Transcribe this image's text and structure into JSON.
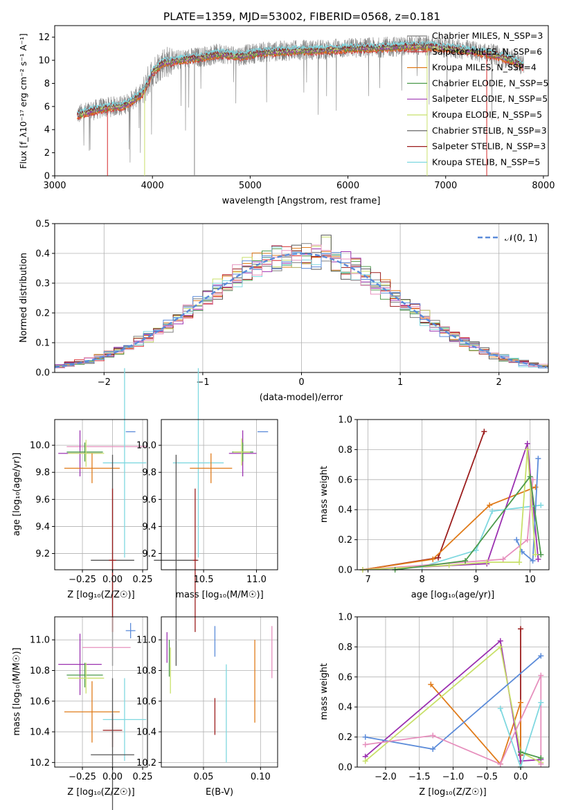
{
  "title": "PLATE=1359, MJD=53002, FIBERID=0568, z=0.181",
  "colors": {
    "chabrier_miles": "#7f7f7f",
    "salpeter_miles": "#d62728",
    "kroupa_miles": "#e07b1a",
    "chabrier_elodie": "#4c9a4c",
    "salpeter_elodie": "#9b30b0",
    "kroupa_elodie": "#c8e06a",
    "chabrier_stelib": "#555555",
    "salpeter_stelib": "#9b1c1c",
    "kroupa_stelib": "#7fd8e0",
    "blue": "#5b8bd9",
    "pink": "#e68fbd",
    "normal": "#5b8bd9"
  },
  "chart_data": [
    {
      "id": "spectrum",
      "type": "line",
      "xlabel": "wavelength [Angstrom, rest frame]",
      "ylabel": "Flux [f_λ10⁻¹⁷ erg cm⁻² s⁻¹ A⁻¹]",
      "xlim": [
        3000,
        8050
      ],
      "ylim": [
        0,
        13
      ],
      "xticks": [
        "3000",
        "4000",
        "5000",
        "6000",
        "7000",
        "8000"
      ],
      "yticks": [
        "0",
        "2",
        "4",
        "6",
        "8",
        "10",
        "12"
      ],
      "legend_position": "top-right",
      "grid": false,
      "series": [
        {
          "name": "Chabrier MILES, N_SSP=3",
          "key": "chabrier_miles"
        },
        {
          "name": "Salpeter MILES, N_SSP=6",
          "key": "salpeter_miles"
        },
        {
          "name": "Kroupa MILES, N_SSP=4",
          "key": "kroupa_miles"
        },
        {
          "name": "Chabrier ELODIE, N_SSP=5",
          "key": "chabrier_elodie"
        },
        {
          "name": "Salpeter ELODIE, N_SSP=5",
          "key": "salpeter_elodie"
        },
        {
          "name": "Kroupa ELODIE, N_SSP=5",
          "key": "kroupa_elodie"
        },
        {
          "name": "Chabrier STELIB, N_SSP=3",
          "key": "chabrier_stelib"
        },
        {
          "name": "Salpeter STELIB, N_SSP=3",
          "key": "salpeter_stelib"
        },
        {
          "name": "Kroupa STELIB, N_SSP=5",
          "key": "kroupa_stelib"
        }
      ],
      "continuum": {
        "x": [
          3230,
          3400,
          3500,
          3600,
          3700,
          3800,
          3900,
          4000,
          4100,
          4300,
          4500,
          4700,
          4900,
          5100,
          5300,
          5500,
          5700,
          5900,
          6100,
          6300,
          6500,
          6700,
          6900,
          7100,
          7300,
          7500,
          7700,
          7800
        ],
        "y": [
          5.3,
          5.7,
          5.9,
          6.0,
          6.1,
          6.6,
          7.2,
          9.0,
          9.8,
          10.1,
          10.3,
          10.6,
          10.4,
          10.7,
          10.8,
          10.9,
          10.9,
          11.0,
          11.1,
          11.1,
          11.2,
          11.3,
          11.2,
          11.0,
          10.8,
          10.5,
          10.0,
          9.5
        ]
      }
    },
    {
      "id": "residuals",
      "type": "area",
      "xlabel": "(data-model)/error",
      "ylabel": "Normed distribution",
      "xlim": [
        -2.5,
        2.5
      ],
      "ylim": [
        0,
        0.5
      ],
      "xticks": [
        "−2",
        "−1",
        "0",
        "1",
        "2"
      ],
      "yticks": [
        "0.0",
        "0.1",
        "0.2",
        "0.3",
        "0.4",
        "0.5"
      ],
      "grid": true,
      "legend": "𝒩(0, 1)",
      "legend_position": "top-right",
      "bin_width": 0.1
    },
    {
      "id": "z_vs_age",
      "type": "scatter",
      "xlabel": "Z [log₁₀(Z/Z☉)]",
      "ylabel": "age  [log₁₀(age/yr)]",
      "xlim": [
        -0.48,
        0.29
      ],
      "ylim": [
        9.08,
        10.19
      ],
      "xticks": [
        "−0.25",
        "0.00",
        "0.25"
      ],
      "xtick_values": [
        -0.25,
        0.0,
        0.25
      ],
      "yticks": [
        "9.2",
        "9.4",
        "9.6",
        "9.8",
        "10.0"
      ],
      "ytick_values": [
        9.2,
        9.4,
        9.6,
        9.8,
        10.0
      ],
      "points": [
        {
          "key": "blue",
          "x": 0.15,
          "xe": 0.04,
          "y": 10.1,
          "ye": 0.0
        },
        {
          "key": "pink",
          "x": -0.05,
          "xe": 0.33,
          "y": 9.99,
          "ye": 0.0
        },
        {
          "key": "salpeter_elodie",
          "x": -0.27,
          "xe": 0.18,
          "y": 9.94,
          "ye": 0.17
        },
        {
          "key": "chabrier_elodie",
          "x": -0.23,
          "xe": 0.15,
          "y": 9.95,
          "ye": 0.07
        },
        {
          "key": "kroupa_elodie",
          "x": -0.22,
          "xe": 0.15,
          "y": 9.94,
          "ye": 0.1
        },
        {
          "key": "kroupa_stelib",
          "x": 0.1,
          "xe": 0.18,
          "y": 9.87,
          "ye": 0.7
        },
        {
          "key": "kroupa_miles",
          "x": -0.17,
          "xe": 0.23,
          "y": 9.83,
          "ye": 0.11
        },
        {
          "key": "chabrier_stelib",
          "x": 0.0,
          "xe": 0.18,
          "y": 9.15,
          "ye": 0.78
        },
        {
          "key": "salpeter_stelib",
          "x": 0.0,
          "xe": 0.03,
          "y": 9.15,
          "ye": 0.53
        }
      ]
    },
    {
      "id": "mass_vs_age",
      "type": "scatter",
      "xlabel": "mass [log₁₀(M/M☉)]",
      "ylabel": "",
      "xlim": [
        10.1,
        11.2
      ],
      "ylim": [
        9.08,
        10.19
      ],
      "xticks": [
        "10.5",
        "11.0"
      ],
      "xtick_values": [
        10.5,
        11.0
      ],
      "yticks": [
        "9.2",
        "9.4",
        "9.6",
        "9.8",
        "10.0"
      ],
      "ytick_values": [
        9.2,
        9.4,
        9.6,
        9.8,
        10.0
      ],
      "points": [
        {
          "key": "blue",
          "x": 11.06,
          "xe": 0.05,
          "y": 10.1,
          "ye": 0.0
        },
        {
          "key": "salpeter_elodie",
          "x": 10.87,
          "xe": 0.13,
          "y": 9.94,
          "ye": 0.17
        },
        {
          "key": "chabrier_elodie",
          "x": 10.87,
          "xe": 0.1,
          "y": 9.95,
          "ye": 0.07
        },
        {
          "key": "kroupa_elodie",
          "x": 10.86,
          "xe": 0.08,
          "y": 9.95,
          "ye": 0.1
        },
        {
          "key": "kroupa_stelib",
          "x": 10.45,
          "xe": 0.24,
          "y": 9.87,
          "ye": 0.7
        },
        {
          "key": "kroupa_miles",
          "x": 10.57,
          "xe": 0.2,
          "y": 9.83,
          "ye": 0.11
        },
        {
          "key": "chabrier_stelib",
          "x": 10.24,
          "xe": 0.21,
          "y": 9.15,
          "ye": 0.78
        },
        {
          "key": "salpeter_stelib",
          "x": 10.42,
          "xe": 0.02,
          "y": 9.15,
          "ye": 0.53
        }
      ]
    },
    {
      "id": "age_vs_weight",
      "type": "line",
      "xlabel": "age  [log₁₀(age/yr)]",
      "ylabel": "mass weight",
      "xlim": [
        6.8,
        10.35
      ],
      "ylim": [
        0,
        1.0
      ],
      "xticks": [
        "7",
        "8",
        "9",
        "10"
      ],
      "xtick_values": [
        7,
        8,
        9,
        10
      ],
      "yticks": [
        "0.0",
        "0.2",
        "0.4",
        "0.6",
        "0.8",
        "1.0"
      ],
      "ytick_values": [
        0,
        0.2,
        0.4,
        0.6,
        0.8,
        1.0
      ],
      "series": [
        {
          "key": "salpeter_stelib",
          "x": [
            6.9,
            8.3,
            9.15
          ],
          "y": [
            0.0,
            0.08,
            0.92
          ]
        },
        {
          "key": "kroupa_miles",
          "x": [
            6.9,
            8.2,
            9.25,
            10.1
          ],
          "y": [
            0.0,
            0.07,
            0.43,
            0.55
          ]
        },
        {
          "key": "salpeter_elodie",
          "x": [
            6.9,
            9.2,
            9.95,
            10.15
          ],
          "y": [
            0.0,
            0.04,
            0.84,
            0.07
          ]
        },
        {
          "key": "kroupa_stelib",
          "x": [
            6.9,
            8.0,
            9.0,
            9.3,
            10.2
          ],
          "y": [
            0.0,
            0.02,
            0.13,
            0.39,
            0.43
          ]
        },
        {
          "key": "blue",
          "x": [
            9.75,
            9.85,
            10.05,
            10.15
          ],
          "y": [
            0.2,
            0.12,
            0.06,
            0.74
          ]
        },
        {
          "key": "pink",
          "x": [
            6.9,
            9.5,
            9.95,
            10.05
          ],
          "y": [
            0.0,
            0.07,
            0.2,
            0.6
          ]
        },
        {
          "key": "kroupa_elodie",
          "x": [
            6.9,
            8.5,
            9.2,
            9.8,
            9.95,
            10.1
          ],
          "y": [
            0.0,
            0.03,
            0.05,
            0.05,
            0.8,
            0.1
          ]
        },
        {
          "key": "chabrier_elodie",
          "x": [
            7.5,
            8.8,
            10.0,
            10.2
          ],
          "y": [
            0.0,
            0.06,
            0.62,
            0.1
          ]
        }
      ]
    },
    {
      "id": "z_vs_mass",
      "type": "scatter",
      "xlabel": "Z [log₁₀(Z/Z☉)]",
      "ylabel": "mass [log₁₀(M/M☉)]",
      "xlim": [
        -0.48,
        0.29
      ],
      "ylim": [
        10.17,
        11.15
      ],
      "xticks": [
        "−0.25",
        "0.00",
        "0.25"
      ],
      "xtick_values": [
        -0.25,
        0.0,
        0.25
      ],
      "yticks": [
        "10.2",
        "10.4",
        "10.6",
        "10.8",
        "11.0"
      ],
      "ytick_values": [
        10.2,
        10.4,
        10.6,
        10.8,
        11.0
      ],
      "points": [
        {
          "key": "blue",
          "x": 0.15,
          "xe": 0.04,
          "y": 11.06,
          "ye": 0.05
        },
        {
          "key": "pink",
          "x": -0.05,
          "xe": 0.2,
          "y": 10.95,
          "ye": 0.0
        },
        {
          "key": "salpeter_elodie",
          "x": -0.27,
          "xe": 0.18,
          "y": 10.84,
          "ye": 0.2
        },
        {
          "key": "chabrier_elodie",
          "x": -0.23,
          "xe": 0.15,
          "y": 10.77,
          "ye": 0.08
        },
        {
          "key": "kroupa_elodie",
          "x": -0.22,
          "xe": 0.15,
          "y": 10.75,
          "ye": 0.1
        },
        {
          "key": "kroupa_miles",
          "x": -0.17,
          "xe": 0.23,
          "y": 10.53,
          "ye": 0.2
        },
        {
          "key": "kroupa_stelib",
          "x": 0.1,
          "xe": 0.18,
          "y": 10.48,
          "ye": 0.27
        },
        {
          "key": "salpeter_stelib",
          "x": 0.0,
          "xe": 0.08,
          "y": 10.41,
          "ye": 0.11
        },
        {
          "key": "chabrier_stelib",
          "x": 0.0,
          "xe": 0.18,
          "y": 10.25,
          "ye": 0.5
        }
      ]
    },
    {
      "id": "ebv_vs_mass",
      "type": "scatter",
      "xlabel": "E(B-V)",
      "ylabel": "",
      "xlim": [
        0.013,
        0.115
      ],
      "ylim": [
        10.17,
        11.15
      ],
      "xticks": [
        "0.05",
        "0.10"
      ],
      "xtick_values": [
        0.05,
        0.1
      ],
      "yticks": [
        "10.2",
        "10.4",
        "10.6",
        "10.8",
        "11.0"
      ],
      "ytick_values": [
        10.2,
        10.4,
        10.6,
        10.8,
        11.0
      ],
      "points": [
        {
          "key": "salpeter_elodie",
          "x": 0.018,
          "y": 10.95,
          "ye": 0.1
        },
        {
          "key": "chabrier_elodie",
          "x": 0.02,
          "y": 10.88,
          "ye": 0.12
        },
        {
          "key": "kroupa_elodie",
          "x": 0.021,
          "y": 10.8,
          "ye": 0.15
        },
        {
          "key": "blue",
          "x": 0.06,
          "y": 10.99,
          "ye": 0.1
        },
        {
          "key": "salpeter_stelib",
          "x": 0.06,
          "y": 10.5,
          "ye": 0.12
        },
        {
          "key": "kroupa_stelib",
          "x": 0.07,
          "y": 10.52,
          "ye": 0.32
        },
        {
          "key": "kroupa_miles",
          "x": 0.095,
          "y": 10.73,
          "ye": 0.27
        },
        {
          "key": "pink",
          "x": 0.11,
          "y": 10.92,
          "ye": 0.17
        }
      ]
    },
    {
      "id": "z_vs_weight",
      "type": "line",
      "xlabel": "Z [log₁₀(Z/Z☉)]",
      "ylabel": "mass weight",
      "xlim": [
        -2.42,
        0.42
      ],
      "ylim": [
        0,
        1.0
      ],
      "xticks": [
        "−2.0",
        "−1.5",
        "−1.0",
        "−0.5",
        "0.0"
      ],
      "xtick_values": [
        -2.0,
        -1.5,
        -1.0,
        -0.5,
        0.0
      ],
      "yticks": [
        "0.0",
        "0.2",
        "0.4",
        "0.6",
        "0.8",
        "1.0"
      ],
      "ytick_values": [
        0,
        0.2,
        0.4,
        0.6,
        0.8,
        1.0
      ],
      "series": [
        {
          "key": "salpeter_stelib",
          "x": [
            0.0,
            0.0
          ],
          "y": [
            0.08,
            0.92
          ]
        },
        {
          "key": "kroupa_miles",
          "x": [
            -1.33,
            -0.3,
            0.0,
            0.0
          ],
          "y": [
            0.55,
            0.02,
            0.43,
            0.0
          ]
        },
        {
          "key": "salpeter_elodie",
          "x": [
            -2.3,
            -0.3,
            0.0,
            0.3
          ],
          "y": [
            0.07,
            0.84,
            0.04,
            0.05
          ]
        },
        {
          "key": "kroupa_elodie",
          "x": [
            -2.3,
            -0.3,
            0.0,
            0.3
          ],
          "y": [
            0.04,
            0.8,
            0.1,
            0.03
          ]
        },
        {
          "key": "blue",
          "x": [
            -2.3,
            -1.3,
            0.3
          ],
          "y": [
            0.2,
            0.12,
            0.74
          ]
        },
        {
          "key": "pink",
          "x": [
            -2.3,
            -1.3,
            -0.3,
            0.3,
            0.3
          ],
          "y": [
            0.15,
            0.21,
            0.02,
            0.61,
            0.02
          ]
        },
        {
          "key": "kroupa_stelib",
          "x": [
            -0.3,
            0.0,
            0.3
          ],
          "y": [
            0.39,
            0.0,
            0.43
          ]
        },
        {
          "key": "chabrier_elodie",
          "x": [
            0.0,
            0.3
          ],
          "y": [
            0.1,
            0.06
          ]
        }
      ]
    }
  ]
}
